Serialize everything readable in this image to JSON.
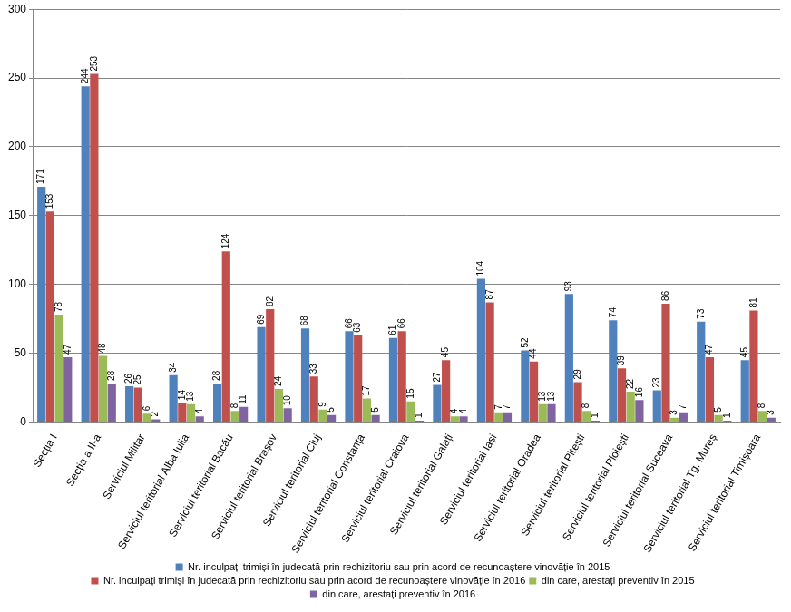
{
  "chart_data": {
    "type": "bar",
    "categories": [
      "Secția I",
      "Secția a II-a",
      "Serviciul Militar",
      "Serviciul teritorial Alba Iulia",
      "Serviciul teritorial Bacău",
      "Serviciul teritorial Brașov",
      "Serviciul teritorial Cluj",
      "Serviciul teritorial Constanța",
      "Serviciul teritorial Craiova",
      "Serviciul teritorial Galați",
      "Serviciul teritorial Iași",
      "Serviciul teritorial Oradea",
      "Serviciul teritorial Pitești",
      "Serviciul teritorial Ploiești",
      "Serviciul teritorial Suceava",
      "Serviciul teritorial Tg. Mureș",
      "Serviciul teritorial Timișoara"
    ],
    "series": [
      {
        "name": "Nr. inculpați trimiși în judecată prin rechizitoriu sau prin acord de recunoaștere vinovăție în 2015",
        "color": "#4F81BD",
        "values": [
          171,
          244,
          26,
          34,
          28,
          69,
          68,
          66,
          61,
          27,
          104,
          52,
          93,
          74,
          23,
          73,
          45
        ]
      },
      {
        "name": "Nr. inculpați trimiși în judecată prin rechizitoriu sau prin acord de recunoaștere vinovăție în 2016",
        "color": "#C0504D",
        "values": [
          153,
          253,
          25,
          14,
          124,
          82,
          33,
          63,
          66,
          45,
          87,
          44,
          29,
          39,
          86,
          47,
          81
        ]
      },
      {
        "name": "din care, arestați preventiv în 2015",
        "color": "#9BBB59",
        "values": [
          78,
          48,
          6,
          13,
          8,
          24,
          9,
          17,
          15,
          4,
          7,
          13,
          8,
          22,
          3,
          5,
          8
        ]
      },
      {
        "name": "din care, arestați preventiv în 2016",
        "color": "#8064A2",
        "values": [
          47,
          28,
          2,
          4,
          11,
          10,
          5,
          5,
          1,
          4,
          7,
          13,
          1,
          16,
          7,
          1,
          3
        ]
      }
    ],
    "ylim": [
      0,
      300
    ],
    "yticks": [
      0,
      50,
      100,
      150,
      200,
      250,
      300
    ],
    "grid": true,
    "legend": "bottom",
    "data_labels": true
  }
}
